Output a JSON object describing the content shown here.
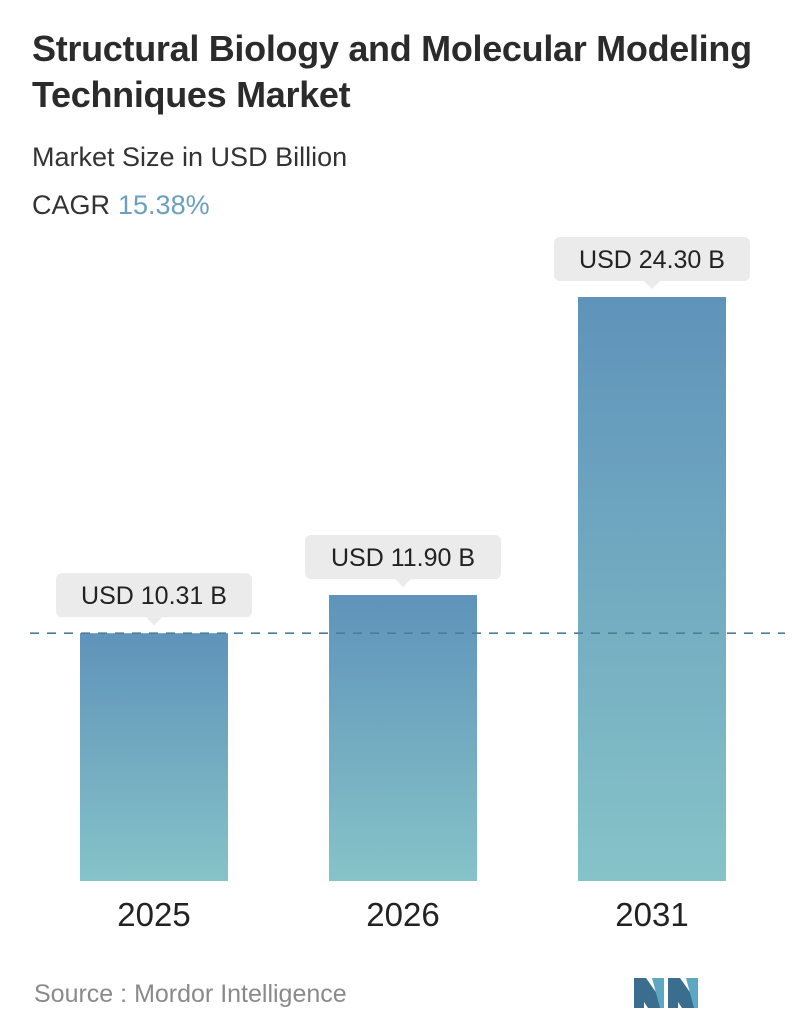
{
  "title": "Structural Biology and Molecular Modeling Techniques Market",
  "subtitle": "Market Size in USD Billion",
  "cagr_label": "CAGR",
  "cagr_value": "15.38%",
  "source_label": "Source :",
  "source_name": "Mordor Intelligence",
  "colors": {
    "bar_top": "#5f93ba",
    "bar_bottom": "#86c3c8",
    "dashed_line": "#4d7d9c",
    "callout_bg": "#ebebeb",
    "cagr_value": "#6aa0bf"
  },
  "chart_data": {
    "type": "bar",
    "categories": [
      "2025",
      "2026",
      "2031"
    ],
    "values": [
      10.31,
      11.9,
      24.3
    ],
    "data_labels": [
      "USD 10.31 B",
      "USD 11.90 B",
      "USD 24.30 B"
    ],
    "reference_line": 10.31,
    "title": "Structural Biology and Molecular Modeling Techniques Market",
    "subtitle": "Market Size in USD Billion",
    "xlabel": "",
    "ylabel": "",
    "ylim": [
      0,
      24.3
    ],
    "grid": false
  }
}
